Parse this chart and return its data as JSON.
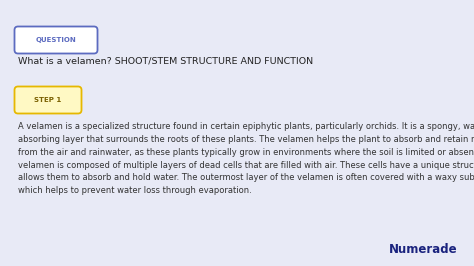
{
  "bg_color": "#e8eaf6",
  "question_badge_text": "QUESTION",
  "question_badge_bg": "#ffffff",
  "question_badge_border": "#5c6bc0",
  "question_badge_text_color": "#5c6bc0",
  "question_text": "What is a velamen? SHOOT/STEM STRUCTURE AND FUNCTION",
  "question_text_color": "#222222",
  "step_badge_text": "STEP 1",
  "step_badge_bg": "#fff9c4",
  "step_badge_border": "#e6b800",
  "step_badge_text_color": "#7a6000",
  "body_text": "A velamen is a specialized structure found in certain epiphytic plants, particularly orchids. It is a spongy, water-\nabsorbing layer that surrounds the roots of these plants. The velamen helps the plant to absorb and retain moisture\nfrom the air and rainwater, as these plants typically grow in environments where the soil is limited or absent. The\nvelamen is composed of multiple layers of dead cells that are filled with air. These cells have a unique structure that\nallows them to absorb and hold water. The outermost layer of the velamen is often covered with a waxy substance,\nwhich helps to prevent water loss through evaporation.",
  "body_text_color": "#333333",
  "numerade_text": "Numerade",
  "numerade_color": "#1a237e",
  "font_size_question": 6.8,
  "font_size_body": 6.0,
  "font_size_badge": 5.0,
  "font_size_numerade": 8.5,
  "dpi": 100,
  "fig_w": 4.74,
  "fig_h": 2.66
}
